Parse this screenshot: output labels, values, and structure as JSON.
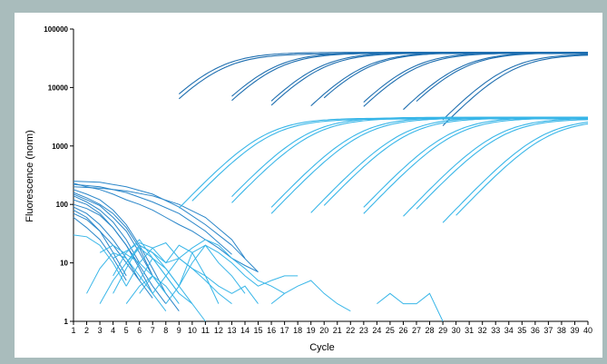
{
  "chart_data": {
    "type": "line",
    "xlabel": "Cycle",
    "ylabel": "Fluorescence (norm)",
    "y_scale": "log",
    "xlim": [
      1,
      40
    ],
    "ylim": [
      1,
      100000
    ],
    "x_ticks": [
      "1",
      "2",
      "3",
      "4",
      "5",
      "6",
      "7",
      "8",
      "9",
      "10",
      "11",
      "12",
      "13",
      "14",
      "15",
      "16",
      "17",
      "18",
      "19",
      "20",
      "21",
      "22",
      "23",
      "24",
      "25",
      "26",
      "27",
      "28",
      "29",
      "30",
      "31",
      "32",
      "33",
      "34",
      "35",
      "36",
      "37",
      "38",
      "39",
      "40"
    ],
    "y_ticks": [
      "1",
      "10",
      "100",
      "1000",
      "10000",
      "100000"
    ],
    "grid": false,
    "legend": "none",
    "colors": {
      "high_plateau": "#1f6fb0",
      "low_plateau": "#39b6e8",
      "baseline": "#2a86c9",
      "axis": "#000000"
    },
    "amplification_curves": [
      {
        "start_cycle": 9,
        "midpoint_cycle": 11.6,
        "plateau": 40000,
        "group": "high"
      },
      {
        "start_cycle": 9,
        "midpoint_cycle": 11.9,
        "plateau": 38000,
        "group": "high"
      },
      {
        "start_cycle": 13,
        "midpoint_cycle": 15.8,
        "plateau": 40000,
        "group": "high"
      },
      {
        "start_cycle": 13,
        "midpoint_cycle": 16.1,
        "plateau": 39000,
        "group": "high"
      },
      {
        "start_cycle": 16,
        "midpoint_cycle": 19.2,
        "plateau": 40000,
        "group": "high"
      },
      {
        "start_cycle": 16,
        "midpoint_cycle": 19.5,
        "plateau": 39000,
        "group": "high"
      },
      {
        "start_cycle": 19,
        "midpoint_cycle": 22.6,
        "plateau": 40000,
        "group": "high"
      },
      {
        "start_cycle": 20,
        "midpoint_cycle": 22.9,
        "plateau": 39500,
        "group": "high"
      },
      {
        "start_cycle": 23,
        "midpoint_cycle": 26.3,
        "plateau": 40000,
        "group": "high"
      },
      {
        "start_cycle": 23,
        "midpoint_cycle": 26.6,
        "plateau": 39000,
        "group": "high"
      },
      {
        "start_cycle": 26,
        "midpoint_cycle": 29.9,
        "plateau": 40000,
        "group": "high"
      },
      {
        "start_cycle": 27,
        "midpoint_cycle": 30.2,
        "plateau": 39500,
        "group": "high"
      },
      {
        "start_cycle": 29,
        "midpoint_cycle": 33.6,
        "plateau": 38000,
        "group": "high"
      },
      {
        "start_cycle": 29,
        "midpoint_cycle": 34.0,
        "plateau": 37000,
        "group": "high"
      },
      {
        "start_cycle": 9,
        "midpoint_cycle": 15.4,
        "plateau": 3000,
        "group": "low"
      },
      {
        "start_cycle": 10,
        "midpoint_cycle": 15.8,
        "plateau": 2900,
        "group": "low"
      },
      {
        "start_cycle": 13,
        "midpoint_cycle": 18.6,
        "plateau": 3100,
        "group": "low"
      },
      {
        "start_cycle": 13,
        "midpoint_cycle": 19.0,
        "plateau": 3000,
        "group": "low"
      },
      {
        "start_cycle": 16,
        "midpoint_cycle": 22.4,
        "plateau": 3100,
        "group": "low"
      },
      {
        "start_cycle": 16,
        "midpoint_cycle": 22.8,
        "plateau": 3000,
        "group": "low"
      },
      {
        "start_cycle": 19,
        "midpoint_cycle": 25.8,
        "plateau": 3100,
        "group": "low"
      },
      {
        "start_cycle": 20,
        "midpoint_cycle": 26.2,
        "plateau": 3000,
        "group": "low"
      },
      {
        "start_cycle": 23,
        "midpoint_cycle": 29.4,
        "plateau": 3100,
        "group": "low"
      },
      {
        "start_cycle": 23,
        "midpoint_cycle": 29.8,
        "plateau": 3000,
        "group": "low"
      },
      {
        "start_cycle": 26,
        "midpoint_cycle": 33.0,
        "plateau": 3000,
        "group": "low"
      },
      {
        "start_cycle": 27,
        "midpoint_cycle": 33.4,
        "plateau": 2900,
        "group": "low"
      },
      {
        "start_cycle": 29,
        "midpoint_cycle": 36.4,
        "plateau": 2900,
        "group": "low"
      },
      {
        "start_cycle": 30,
        "midpoint_cycle": 36.8,
        "plateau": 2800,
        "group": "low"
      }
    ],
    "baseline_curves": [
      {
        "x": [
          1,
          3,
          5,
          7,
          9,
          11,
          13,
          15
        ],
        "y": [
          250,
          240,
          200,
          150,
          90,
          45,
          20,
          7
        ],
        "group": "high"
      },
      {
        "x": [
          1,
          3,
          5,
          7,
          9,
          11,
          13
        ],
        "y": [
          220,
          200,
          160,
          110,
          70,
          35,
          14
        ],
        "group": "high"
      },
      {
        "x": [
          1,
          2,
          3,
          4,
          5,
          6,
          7,
          8
        ],
        "y": [
          180,
          150,
          120,
          80,
          45,
          20,
          8,
          3
        ],
        "group": "high"
      },
      {
        "x": [
          1,
          2,
          3,
          4,
          5,
          6,
          7
        ],
        "y": [
          160,
          130,
          100,
          70,
          40,
          18,
          6
        ],
        "group": "high"
      },
      {
        "x": [
          1,
          2,
          3,
          4,
          5,
          6,
          7,
          8,
          9
        ],
        "y": [
          150,
          120,
          95,
          60,
          35,
          15,
          6,
          3,
          1.5
        ],
        "group": "high"
      },
      {
        "x": [
          1,
          2,
          3,
          4,
          5,
          6
        ],
        "y": [
          140,
          110,
          80,
          50,
          25,
          10
        ],
        "group": "high"
      },
      {
        "x": [
          1,
          2,
          3,
          4,
          5,
          6,
          7
        ],
        "y": [
          120,
          100,
          70,
          40,
          20,
          8,
          3
        ],
        "group": "high"
      },
      {
        "x": [
          1,
          2,
          3,
          4,
          5,
          6,
          7,
          8
        ],
        "y": [
          100,
          85,
          65,
          40,
          20,
          9,
          4,
          2
        ],
        "group": "high"
      },
      {
        "x": [
          1,
          2,
          3,
          4,
          5,
          6
        ],
        "y": [
          90,
          70,
          45,
          25,
          12,
          5
        ],
        "group": "high"
      },
      {
        "x": [
          1,
          2,
          3,
          4,
          5
        ],
        "y": [
          80,
          60,
          35,
          15,
          6
        ],
        "group": "high"
      },
      {
        "x": [
          1,
          2,
          3,
          4,
          5,
          6,
          7
        ],
        "y": [
          70,
          55,
          35,
          20,
          10,
          5,
          2.5
        ],
        "group": "high"
      },
      {
        "x": [
          1,
          2,
          3,
          4,
          5
        ],
        "y": [
          60,
          40,
          25,
          12,
          5
        ],
        "group": "high"
      },
      {
        "x": [
          1,
          2,
          3,
          4,
          5,
          6,
          7,
          8,
          9,
          10,
          11,
          12,
          13,
          14,
          15
        ],
        "y": [
          230,
          200,
          180,
          150,
          120,
          100,
          80,
          60,
          45,
          35,
          25,
          18,
          12,
          9,
          7
        ],
        "group": "high"
      },
      {
        "x": [
          1,
          3,
          5,
          7,
          9,
          11,
          13,
          14
        ],
        "y": [
          200,
          190,
          170,
          140,
          100,
          60,
          25,
          12
        ],
        "group": "high"
      },
      {
        "x": [
          1,
          2,
          3,
          4,
          5
        ],
        "y": [
          30,
          28,
          20,
          10,
          4
        ],
        "group": "low"
      },
      {
        "x": [
          2,
          3,
          4,
          5,
          6,
          7,
          8
        ],
        "y": [
          3,
          8,
          15,
          12,
          6,
          3,
          1.5
        ],
        "group": "low"
      },
      {
        "x": [
          3,
          4,
          5,
          6,
          7,
          8,
          9
        ],
        "y": [
          2,
          5,
          10,
          18,
          12,
          6,
          3
        ],
        "group": "low"
      },
      {
        "x": [
          4,
          5,
          6,
          7,
          8,
          9,
          10,
          11,
          12
        ],
        "y": [
          3,
          8,
          20,
          15,
          10,
          20,
          15,
          6,
          2
        ],
        "group": "low"
      },
      {
        "x": [
          4,
          5,
          6,
          7,
          8,
          9,
          10,
          11
        ],
        "y": [
          6,
          15,
          25,
          12,
          6,
          3,
          2,
          1
        ],
        "group": "low"
      },
      {
        "x": [
          5,
          6,
          7,
          8,
          9,
          10,
          11,
          12,
          13
        ],
        "y": [
          4,
          10,
          18,
          22,
          12,
          8,
          5,
          3,
          2
        ],
        "group": "low"
      },
      {
        "x": [
          5,
          6,
          7,
          8,
          9,
          10
        ],
        "y": [
          10,
          20,
          15,
          8,
          4,
          2
        ],
        "group": "low"
      },
      {
        "x": [
          6,
          7,
          8,
          9,
          10,
          11,
          12,
          13,
          14
        ],
        "y": [
          5,
          12,
          8,
          4,
          15,
          20,
          10,
          6,
          3
        ],
        "group": "low"
      },
      {
        "x": [
          7,
          8,
          9,
          10,
          11,
          12,
          13,
          14,
          15,
          16,
          17
        ],
        "y": [
          3,
          6,
          12,
          18,
          25,
          20,
          12,
          8,
          5,
          4,
          3
        ],
        "group": "low"
      },
      {
        "x": [
          8,
          9,
          10,
          11,
          12,
          13,
          14,
          15,
          16,
          17,
          18
        ],
        "y": [
          2,
          4,
          10,
          20,
          15,
          10,
          6,
          4,
          5,
          6,
          6
        ],
        "group": "low"
      },
      {
        "x": [
          3,
          4,
          5,
          6,
          7,
          8
        ],
        "y": [
          15,
          20,
          14,
          10,
          6,
          3
        ],
        "group": "low"
      },
      {
        "x": [
          5,
          6,
          7,
          8
        ],
        "y": [
          2,
          4,
          6,
          3
        ],
        "group": "low"
      },
      {
        "x": [
          6,
          7,
          8,
          9
        ],
        "y": [
          3,
          6,
          4,
          2
        ],
        "group": "low"
      },
      {
        "x": [
          4,
          5,
          6,
          7,
          8,
          9,
          10,
          11,
          12,
          13,
          14,
          15
        ],
        "y": [
          12,
          16,
          22,
          18,
          10,
          12,
          8,
          6,
          4,
          3,
          4,
          2
        ],
        "group": "low"
      },
      {
        "x": [
          16,
          17,
          18,
          19,
          20,
          21,
          22
        ],
        "y": [
          2,
          3,
          4,
          5,
          3,
          2,
          1.5
        ],
        "group": "low"
      },
      {
        "x": [
          24,
          25,
          26,
          27,
          28,
          29
        ],
        "y": [
          2,
          3,
          2,
          2,
          3,
          1
        ],
        "group": "low"
      }
    ]
  }
}
